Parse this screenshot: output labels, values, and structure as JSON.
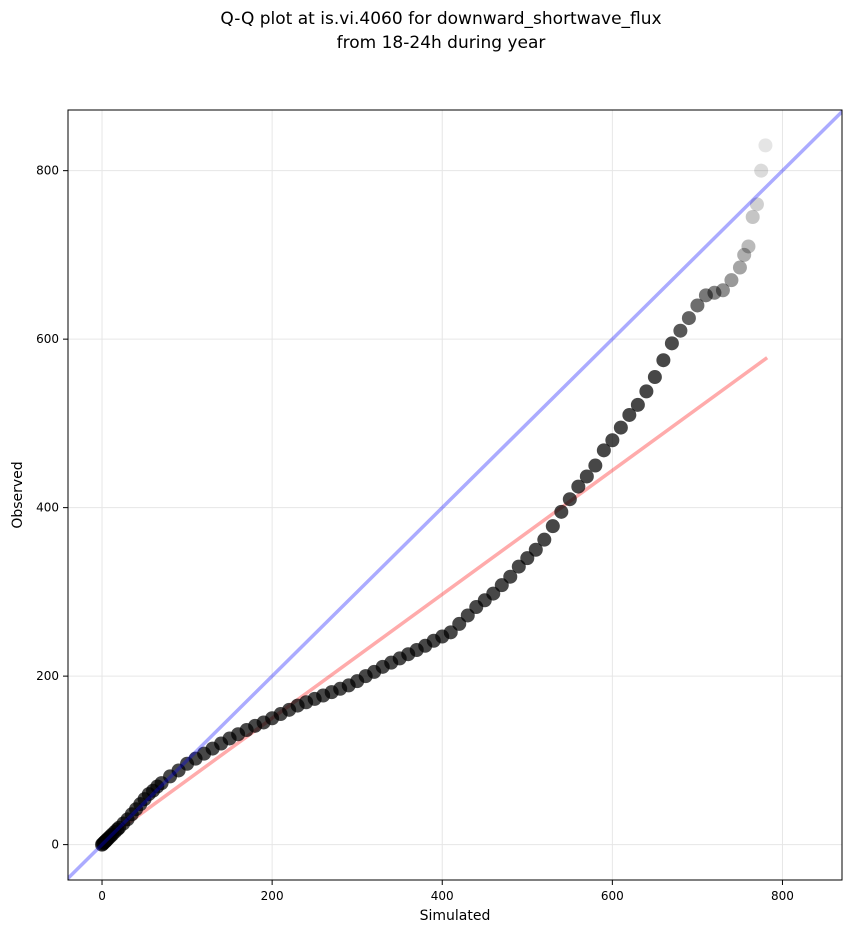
{
  "chart_data": {
    "type": "scatter",
    "title_line1": "Q-Q plot at is.vi.4060 for downward_shortwave_flux",
    "title_line2": "from 18-24h during year",
    "xlabel": "Simulated",
    "ylabel": "Observed",
    "xlim": [
      -40,
      870
    ],
    "ylim": [
      -42,
      872
    ],
    "xticks": [
      0,
      200,
      400,
      600,
      800
    ],
    "yticks": [
      0,
      200,
      400,
      600,
      800
    ],
    "grid": true,
    "reference_line": {
      "color": "#0000ff",
      "alpha": 0.33,
      "slope": 1,
      "intercept": 0
    },
    "fit_line": {
      "color": "#ff0000",
      "alpha": 0.33,
      "x": [
        0,
        782
      ],
      "y": [
        3,
        578
      ]
    },
    "point_color": "#000000",
    "points": {
      "x": [
        0,
        1,
        2,
        3,
        4,
        5,
        6,
        8,
        10,
        12,
        15,
        18,
        20,
        25,
        30,
        35,
        40,
        45,
        50,
        55,
        60,
        65,
        70,
        80,
        90,
        100,
        110,
        120,
        130,
        140,
        150,
        160,
        170,
        180,
        190,
        200,
        210,
        220,
        230,
        240,
        250,
        260,
        270,
        280,
        290,
        300,
        310,
        320,
        330,
        340,
        350,
        360,
        370,
        380,
        390,
        400,
        410,
        420,
        430,
        440,
        450,
        460,
        470,
        480,
        490,
        500,
        510,
        520,
        530,
        540,
        550,
        560,
        570,
        580,
        590,
        600,
        610,
        620,
        630,
        640,
        650,
        660,
        670,
        680,
        690,
        700,
        710,
        720,
        730,
        740,
        750,
        755,
        760,
        765,
        770,
        775,
        780
      ],
      "y": [
        0,
        1,
        2,
        3,
        4,
        5,
        6,
        8,
        10,
        12,
        15,
        18,
        20,
        25,
        30,
        36,
        42,
        48,
        54,
        60,
        64,
        69,
        73,
        81,
        88,
        96,
        102,
        108,
        114,
        120,
        126,
        131,
        136,
        141,
        145,
        150,
        155,
        160,
        165,
        169,
        173,
        177,
        181,
        185,
        189,
        194,
        200,
        205,
        211,
        216,
        221,
        226,
        231,
        236,
        242,
        247,
        252,
        262,
        272,
        282,
        290,
        298,
        308,
        318,
        330,
        340,
        350,
        362,
        378,
        395,
        410,
        425,
        437,
        450,
        468,
        480,
        495,
        510,
        522,
        538,
        555,
        575,
        595,
        610,
        625,
        640,
        652,
        655,
        658,
        670,
        685,
        700,
        710,
        745,
        760,
        800,
        830
      ]
    }
  }
}
